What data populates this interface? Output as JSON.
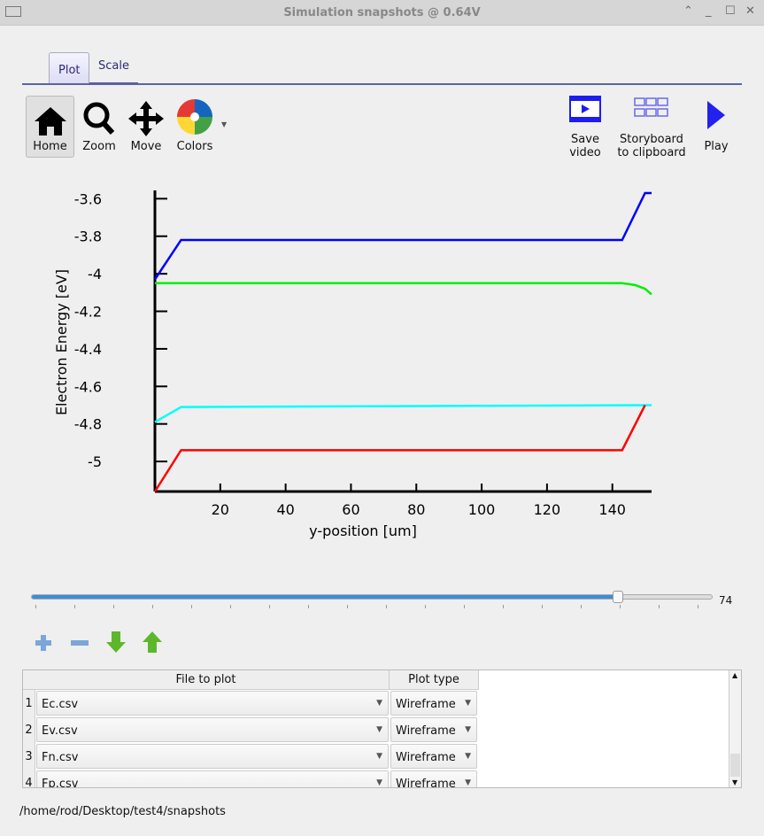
{
  "window": {
    "title": "Simulation snapshots @ 0.64V"
  },
  "tabs": [
    {
      "label": "Plot",
      "active": true
    },
    {
      "label": "Scale",
      "active": false
    }
  ],
  "toolbar": {
    "home": "Home",
    "zoom": "Zoom",
    "move": "Move",
    "colors": "Colors",
    "save_video": [
      "Save",
      "video"
    ],
    "storyboard": [
      "Storyboard",
      "to clipboard"
    ],
    "play": "Play"
  },
  "chart_data": {
    "type": "line",
    "xlabel": "y-position [um]",
    "ylabel": "Electron Energy [eV]",
    "xlim": [
      0,
      152
    ],
    "ylim": [
      -5.16,
      -3.57
    ],
    "xticks": [
      "20",
      "40",
      "60",
      "80",
      "100",
      "120",
      "140"
    ],
    "yticks": [
      "-3.6",
      "-3.8",
      "-4",
      "-4.2",
      "-4.4",
      "-4.6",
      "-4.8",
      "-5"
    ],
    "grid": false,
    "series": [
      {
        "color": "#0000ff",
        "x": [
          0,
          8,
          143,
          150,
          152
        ],
        "y": [
          -4.03,
          -3.82,
          -3.82,
          -3.57,
          -3.57
        ]
      },
      {
        "color": "#00ee00",
        "x": [
          0,
          143,
          147,
          150,
          152
        ],
        "y": [
          -4.05,
          -4.05,
          -4.06,
          -4.08,
          -4.11
        ]
      },
      {
        "color": "#00ffff",
        "x": [
          0,
          8,
          152
        ],
        "y": [
          -4.79,
          -4.71,
          -4.7
        ]
      },
      {
        "color": "#ff0000",
        "x": [
          0,
          8,
          143,
          150
        ],
        "y": [
          -5.16,
          -4.94,
          -4.94,
          -4.7
        ]
      }
    ]
  },
  "slider": {
    "value": "74",
    "fraction": 0.86
  },
  "table": {
    "headers": [
      "File to plot",
      "Plot type"
    ],
    "rows": [
      {
        "n": "1",
        "file": "Ec.csv",
        "type": "Wireframe"
      },
      {
        "n": "2",
        "file": "Ev.csv",
        "type": "Wireframe"
      },
      {
        "n": "3",
        "file": "Fn.csv",
        "type": "Wireframe"
      },
      {
        "n": "4",
        "file": "Fp.csv",
        "type": "Wireframe"
      }
    ]
  },
  "status": {
    "path": "/home/rod/Desktop/test4/snapshots"
  }
}
